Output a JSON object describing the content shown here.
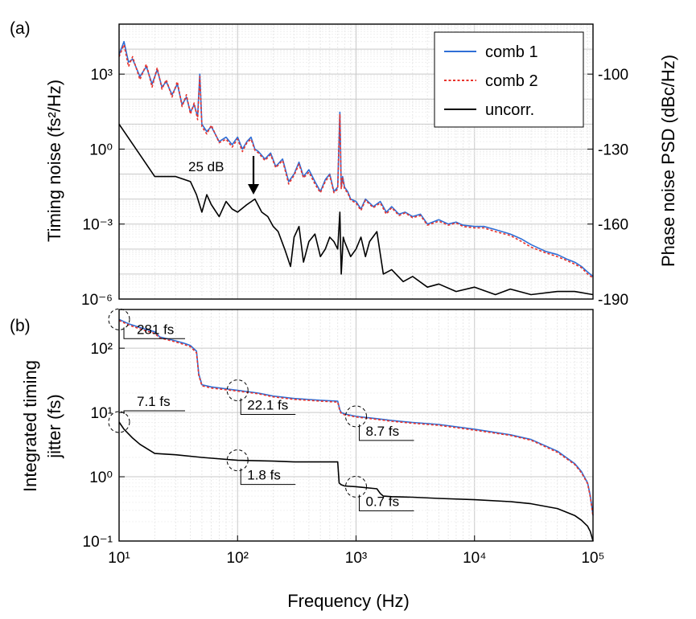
{
  "chart_data": [
    {
      "type": "line",
      "panel_label": "(a)",
      "xscale": "log",
      "yscale": "log",
      "xlim": [
        10,
        100000
      ],
      "ylim": [
        1e-06,
        100000
      ],
      "xlabel": "",
      "ylabel": "Timing noise (fs²/Hz)",
      "ylabel_right": "Phase noise PSD (dBc/Hz)",
      "yticks_left": [
        "10⁻⁶",
        "10⁻³",
        "10⁰",
        "10³"
      ],
      "yticks_left_values": [
        1e-06,
        0.001,
        1,
        1000
      ],
      "yticks_right": [
        "-190",
        "-160",
        "-130",
        "-100"
      ],
      "grid": true,
      "legend_position": "top-right",
      "series": [
        {
          "name": "comb 1",
          "color": "#2f6fd6",
          "style": "solid",
          "x": [
            10,
            11,
            12,
            13,
            15,
            17,
            19,
            21,
            23,
            25,
            28,
            31,
            34,
            37,
            40,
            43,
            46,
            48,
            50,
            55,
            60,
            70,
            80,
            90,
            100,
            110,
            120,
            130,
            140,
            150,
            170,
            190,
            210,
            240,
            270,
            300,
            330,
            360,
            400,
            450,
            500,
            550,
            600,
            650,
            700,
            730,
            750,
            770,
            800,
            850,
            900,
            1000,
            1100,
            1200,
            1400,
            1600,
            1800,
            2000,
            2300,
            2600,
            3000,
            3500,
            4000,
            5000,
            6000,
            7000,
            8000,
            10000,
            12000,
            15000,
            20000,
            25000,
            30000,
            40000,
            50000,
            60000,
            70000,
            80000,
            90000,
            100000
          ],
          "y": [
            6000,
            20000,
            3000,
            4000,
            800,
            2000,
            400,
            1500,
            300,
            500,
            150,
            400,
            60,
            120,
            30,
            60,
            20,
            1000,
            10,
            5,
            8,
            2,
            3,
            1.5,
            3,
            1,
            2,
            3,
            1,
            0.8,
            0.4,
            0.7,
            0.2,
            0.4,
            0.05,
            0.1,
            0.3,
            0.08,
            0.15,
            0.05,
            0.02,
            0.06,
            0.1,
            0.02,
            0.03,
            30,
            0.03,
            0.08,
            0.03,
            0.02,
            0.01,
            0.008,
            0.004,
            0.01,
            0.005,
            0.008,
            0.003,
            0.005,
            0.0025,
            0.003,
            0.002,
            0.0025,
            0.001,
            0.0015,
            0.001,
            0.0012,
            0.0009,
            0.0008,
            0.0008,
            0.0006,
            0.0004,
            0.00025,
            0.00015,
            8e-05,
            6e-05,
            4e-05,
            3e-05,
            2e-05,
            1.2e-05,
            8e-06
          ]
        },
        {
          "name": "comb 2",
          "color": "#e8322b",
          "style": "dotted",
          "x": [
            10,
            11,
            12,
            13,
            15,
            17,
            19,
            21,
            23,
            25,
            28,
            31,
            34,
            37,
            40,
            43,
            46,
            48,
            50,
            55,
            60,
            70,
            80,
            90,
            100,
            110,
            120,
            130,
            140,
            150,
            170,
            190,
            210,
            240,
            270,
            300,
            330,
            360,
            400,
            450,
            500,
            550,
            600,
            650,
            700,
            730,
            750,
            770,
            800,
            850,
            900,
            1000,
            1100,
            1200,
            1400,
            1600,
            1800,
            2000,
            2300,
            2600,
            3000,
            3500,
            4000,
            5000,
            6000,
            7000,
            8000,
            10000,
            12000,
            15000,
            20000,
            25000,
            30000,
            40000,
            50000,
            60000,
            70000,
            80000,
            90000,
            100000
          ],
          "y": [
            5000,
            15000,
            2000,
            5000,
            600,
            2500,
            300,
            1800,
            250,
            600,
            120,
            500,
            50,
            150,
            25,
            70,
            15,
            800,
            8,
            4,
            9,
            1.8,
            2.5,
            1.2,
            2.5,
            0.8,
            1.8,
            2.5,
            0.9,
            0.7,
            0.35,
            0.6,
            0.18,
            0.35,
            0.04,
            0.09,
            0.25,
            0.07,
            0.12,
            0.04,
            0.018,
            0.05,
            0.09,
            0.018,
            0.025,
            25,
            0.025,
            0.07,
            0.025,
            0.018,
            0.009,
            0.007,
            0.0035,
            0.009,
            0.0045,
            0.007,
            0.0025,
            0.0045,
            0.0022,
            0.0028,
            0.0018,
            0.0022,
            0.0009,
            0.0013,
            0.0009,
            0.0011,
            0.0008,
            0.0007,
            0.0007,
            0.0005,
            0.00035,
            0.0002,
            0.00012,
            7e-05,
            5e-05,
            3.5e-05,
            2.5e-05,
            1.8e-05,
            1e-05,
            7e-06
          ]
        },
        {
          "name": "uncorr.",
          "color": "#000000",
          "style": "solid",
          "x": [
            10,
            15,
            20,
            25,
            30,
            40,
            45,
            50,
            55,
            60,
            70,
            80,
            90,
            100,
            120,
            140,
            160,
            180,
            200,
            220,
            250,
            280,
            300,
            330,
            360,
            400,
            450,
            500,
            550,
            600,
            650,
            700,
            730,
            750,
            780,
            800,
            900,
            1000,
            1100,
            1200,
            1300,
            1500,
            1700,
            2000,
            2500,
            3000,
            4000,
            5000,
            7000,
            10000,
            15000,
            20000,
            30000,
            50000,
            70000,
            100000
          ],
          "y": [
            10,
            0.6,
            0.08,
            0.08,
            0.08,
            0.05,
            0.015,
            0.003,
            0.015,
            0.006,
            0.002,
            0.008,
            0.004,
            0.003,
            0.006,
            0.01,
            0.003,
            0.002,
            0.0008,
            0.0005,
            0.0001,
            2e-05,
            0.0003,
            0.0008,
            3e-05,
            0.0002,
            0.0004,
            5e-05,
            0.0001,
            0.0003,
            0.0002,
            0.0001,
            0.003,
            1e-05,
            0.0003,
            0.0002,
            5e-05,
            0.0001,
            0.0003,
            5e-05,
            0.0002,
            0.0005,
            1e-05,
            1.5e-05,
            5e-06,
            8e-06,
            3e-06,
            4e-06,
            2e-06,
            3e-06,
            1.5e-06,
            2.5e-06,
            1.5e-06,
            2e-06,
            2e-06,
            1.5e-06
          ]
        }
      ],
      "annotations": [
        {
          "text": "25 dB",
          "x": 130,
          "y": 0.05
        }
      ]
    },
    {
      "type": "line",
      "panel_label": "(b)",
      "xscale": "log",
      "yscale": "log",
      "xlim": [
        10,
        100000
      ],
      "ylim": [
        0.1,
        400
      ],
      "xlabel": "Frequency (Hz)",
      "ylabel": "Integrated timing jitter (fs)",
      "ylabel_lines": [
        "Integrated timing",
        "jitter (fs)"
      ],
      "xticks": [
        "10¹",
        "10²",
        "10³",
        "10⁴",
        "10⁵"
      ],
      "xticks_values": [
        10,
        100,
        1000,
        10000,
        100000
      ],
      "yticks": [
        "10⁻¹",
        "10⁰",
        "10¹",
        "10²"
      ],
      "yticks_values": [
        0.1,
        1,
        10,
        100
      ],
      "grid": true,
      "series": [
        {
          "name": "comb 1",
          "color": "#2f6fd6",
          "style": "solid",
          "x": [
            10,
            12,
            15,
            18,
            20,
            22,
            30,
            35,
            40,
            45,
            47,
            50,
            60,
            100,
            150,
            200,
            300,
            500,
            700,
            730,
            750,
            800,
            1000,
            1500,
            2000,
            3000,
            5000,
            10000,
            20000,
            30000,
            50000,
            70000,
            80000,
            90000,
            95000,
            100000
          ],
          "y": [
            281,
            240,
            210,
            190,
            180,
            150,
            130,
            120,
            110,
            90,
            40,
            27,
            25,
            22.1,
            20,
            18,
            16.5,
            15.5,
            15,
            11,
            10,
            9.5,
            8.7,
            8,
            7.5,
            7,
            6.5,
            5.5,
            4.5,
            3.8,
            2.5,
            1.6,
            1.2,
            0.8,
            0.5,
            0.25
          ]
        },
        {
          "name": "comb 2",
          "color": "#e8322b",
          "style": "dotted",
          "x": [
            10,
            12,
            15,
            18,
            20,
            22,
            30,
            35,
            40,
            45,
            47,
            50,
            60,
            100,
            150,
            200,
            300,
            500,
            700,
            730,
            750,
            800,
            1000,
            1500,
            2000,
            3000,
            5000,
            10000,
            20000,
            30000,
            50000,
            70000,
            80000,
            90000,
            95000,
            100000
          ],
          "y": [
            270,
            230,
            200,
            180,
            170,
            145,
            125,
            115,
            105,
            85,
            38,
            26,
            24,
            21.5,
            19.5,
            17.5,
            16,
            15,
            14.5,
            10.5,
            9.7,
            9.2,
            8.5,
            7.8,
            7.3,
            6.8,
            6.3,
            5.3,
            4.4,
            3.7,
            2.4,
            1.55,
            1.15,
            0.78,
            0.48,
            0.24
          ]
        },
        {
          "name": "uncorr.",
          "color": "#000000",
          "style": "solid",
          "x": [
            10,
            11,
            13,
            15,
            18,
            20,
            30,
            50,
            100,
            200,
            300,
            500,
            700,
            720,
            750,
            800,
            1000,
            1500,
            1600,
            1700,
            2000,
            3000,
            5000,
            10000,
            20000,
            30000,
            50000,
            70000,
            80000,
            90000,
            95000,
            100000
          ],
          "y": [
            7.1,
            5.5,
            4,
            3.2,
            2.6,
            2.3,
            2.2,
            2.0,
            1.8,
            1.75,
            1.7,
            1.7,
            1.7,
            0.8,
            0.75,
            0.72,
            0.7,
            0.65,
            0.55,
            0.5,
            0.49,
            0.48,
            0.46,
            0.44,
            0.41,
            0.38,
            0.32,
            0.25,
            0.21,
            0.17,
            0.14,
            0.1
          ]
        }
      ],
      "annotations": [
        {
          "text": "281 fs",
          "x": 10,
          "y": 281
        },
        {
          "text": "22.1 fs",
          "x": 100,
          "y": 22.1
        },
        {
          "text": "8.7 fs",
          "x": 1000,
          "y": 8.7
        },
        {
          "text": "7.1 fs",
          "x": 10,
          "y": 7.1
        },
        {
          "text": "1.8 fs",
          "x": 100,
          "y": 1.8
        },
        {
          "text": "0.7 fs",
          "x": 1000,
          "y": 0.7
        }
      ]
    }
  ]
}
